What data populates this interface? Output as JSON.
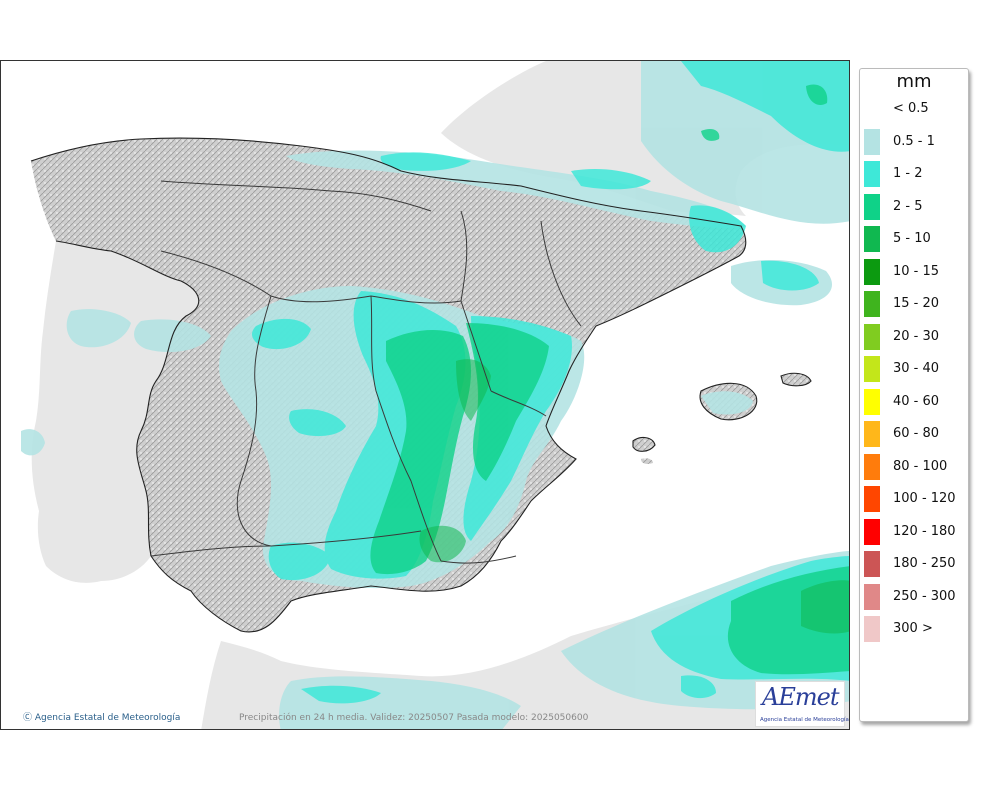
{
  "map": {
    "copyright": "Agencia Estatal de Meteorología",
    "caption": "Precipitación en 24 h media. Validez: 20250507 Pasada modelo: 2025050600",
    "logo": {
      "text": "AEmet",
      "subtitle": "Agencia Estatal de Meteorología"
    },
    "colors": {
      "sea": "#ffffff",
      "land_foreign": "#e7e7e7",
      "land_relief": "#cdcdcd",
      "border": "#222222"
    }
  },
  "legend": {
    "title": "mm",
    "items": [
      {
        "label": "< 0.5",
        "color": "#ffffff"
      },
      {
        "label": "0.5 - 1",
        "color": "#b4e3e3"
      },
      {
        "label": "1 - 2",
        "color": "#3ee8d8"
      },
      {
        "label": "2 - 5",
        "color": "#0fd288"
      },
      {
        "label": "5 - 10",
        "color": "#10b850"
      },
      {
        "label": "10 - 15",
        "color": "#0c9a10"
      },
      {
        "label": "15 - 20",
        "color": "#3fb41e"
      },
      {
        "label": "20 - 30",
        "color": "#80cc20"
      },
      {
        "label": "30 - 40",
        "color": "#c3e61a"
      },
      {
        "label": "40 - 60",
        "color": "#ffff00"
      },
      {
        "label": "60 - 80",
        "color": "#ffb71a"
      },
      {
        "label": "80 - 100",
        "color": "#ff7c0c"
      },
      {
        "label": "100 - 120",
        "color": "#ff4600"
      },
      {
        "label": "120 - 180",
        "color": "#ff0000"
      },
      {
        "label": "180 - 250",
        "color": "#cc5555"
      },
      {
        "label": "250 - 300",
        "color": "#e08888"
      },
      {
        "label": "300 >",
        "color": "#f0c8c8"
      }
    ]
  }
}
